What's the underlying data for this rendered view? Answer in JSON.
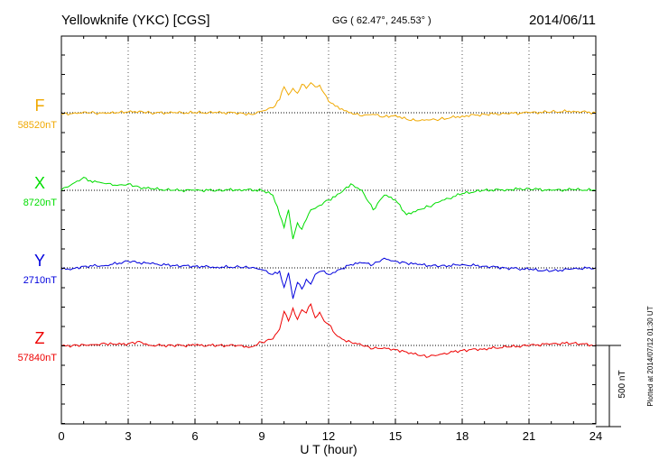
{
  "header": {
    "station": "Yellowknife (YKC)  [CGS]",
    "coords": "GG ( 62.47°, 245.53° )",
    "date": "2014/06/11"
  },
  "plotted_note": "Plotted at 2014/07/12 01:30 UT",
  "colors": {
    "F": "#f0a800",
    "X": "#00dd00",
    "Y": "#0000dd",
    "Z": "#ee0000",
    "grid": "#555555",
    "axis": "#000000"
  },
  "chart_data": {
    "type": "line",
    "xlabel": "U T (hour)",
    "xlim": [
      0,
      24
    ],
    "xticks": [
      0,
      3,
      6,
      9,
      12,
      15,
      18,
      21,
      24
    ],
    "xtick_labels": [
      "0",
      "3",
      "6",
      "9",
      "12",
      "15",
      "18",
      "21",
      "24"
    ],
    "scale_bar": {
      "label": "500 nT",
      "nT": 500
    },
    "series": [
      {
        "name": "F",
        "baseline_label": "58520nT",
        "x": [
          0,
          0.5,
          1,
          1.5,
          2,
          2.5,
          3,
          3.5,
          4,
          5,
          6,
          7,
          8,
          8.5,
          9,
          9.5,
          9.8,
          10,
          10.2,
          10.4,
          10.6,
          10.8,
          11,
          11.2,
          11.4,
          11.6,
          11.8,
          12,
          12.3,
          12.6,
          13,
          13.5,
          14,
          14.5,
          15,
          15.5,
          16,
          16.5,
          17,
          18,
          19,
          20,
          21,
          22,
          23,
          24
        ],
        "values": [
          -10,
          -5,
          5,
          0,
          -5,
          0,
          5,
          10,
          0,
          0,
          0,
          0,
          0,
          -10,
          10,
          30,
          80,
          160,
          110,
          150,
          120,
          175,
          150,
          185,
          160,
          170,
          120,
          70,
          40,
          25,
          0,
          -20,
          -10,
          -25,
          -15,
          -40,
          -50,
          -45,
          -40,
          -20,
          -10,
          -5,
          0,
          5,
          10,
          0
        ]
      },
      {
        "name": "X",
        "baseline_label": "8720nT",
        "x": [
          0,
          0.5,
          1,
          1.3,
          1.7,
          2,
          2.5,
          3,
          3.5,
          4,
          5,
          6,
          7,
          8,
          9,
          9.5,
          9.8,
          10,
          10.2,
          10.4,
          10.6,
          10.8,
          11,
          11.2,
          11.5,
          12,
          12.3,
          12.6,
          13,
          13.5,
          14,
          14.5,
          15,
          15.5,
          16,
          16.5,
          17,
          18,
          19,
          20,
          21,
          22,
          23,
          24
        ],
        "values": [
          0,
          40,
          80,
          60,
          50,
          40,
          30,
          40,
          20,
          10,
          0,
          0,
          0,
          5,
          0,
          -30,
          -150,
          -230,
          -120,
          -300,
          -200,
          -240,
          -180,
          -120,
          -100,
          -60,
          -40,
          -10,
          40,
          0,
          -120,
          -30,
          -60,
          -150,
          -120,
          -100,
          -70,
          -20,
          0,
          5,
          10,
          0,
          5,
          0
        ]
      },
      {
        "name": "Y",
        "baseline_label": "2710nT",
        "x": [
          0,
          0.5,
          1,
          2,
          3,
          4,
          5,
          6,
          7,
          8,
          8.5,
          9,
          9.5,
          9.8,
          10,
          10.2,
          10.4,
          10.6,
          10.8,
          11,
          11.2,
          11.4,
          11.7,
          12,
          12.5,
          13,
          13.5,
          14,
          14.5,
          15,
          15.5,
          16,
          17,
          18,
          19,
          20,
          21,
          22,
          23,
          24
        ],
        "values": [
          -10,
          -5,
          10,
          15,
          40,
          25,
          15,
          10,
          5,
          5,
          0,
          -10,
          -40,
          -20,
          -120,
          -30,
          -190,
          -90,
          -130,
          -70,
          -100,
          -40,
          -20,
          -40,
          -10,
          20,
          30,
          20,
          60,
          40,
          30,
          20,
          10,
          20,
          10,
          0,
          -10,
          -20,
          -5,
          0
        ]
      },
      {
        "name": "Z",
        "baseline_label": "57840nT",
        "x": [
          0,
          0.5,
          1,
          1.5,
          2,
          2.5,
          3,
          3.5,
          4,
          5,
          6,
          7,
          8,
          8.5,
          9,
          9.5,
          9.8,
          10,
          10.2,
          10.4,
          10.6,
          10.8,
          11,
          11.2,
          11.4,
          11.6,
          11.8,
          12,
          12.3,
          12.6,
          13,
          13.5,
          14,
          14.5,
          15,
          15.5,
          16,
          16.5,
          17,
          18,
          19,
          20,
          21,
          22,
          23,
          24
        ],
        "values": [
          -5,
          0,
          5,
          5,
          10,
          5,
          10,
          25,
          0,
          0,
          0,
          0,
          0,
          -10,
          20,
          40,
          100,
          210,
          150,
          230,
          160,
          220,
          200,
          255,
          170,
          205,
          150,
          130,
          70,
          40,
          20,
          0,
          -20,
          -15,
          -25,
          -40,
          -60,
          -70,
          -55,
          -30,
          -20,
          -10,
          0,
          10,
          15,
          0
        ]
      }
    ]
  }
}
